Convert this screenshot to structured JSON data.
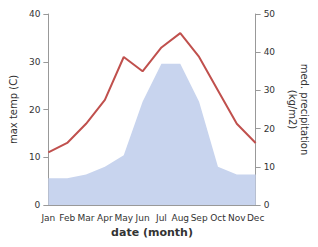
{
  "chart_data": {
    "type": "line",
    "xlabel": "date (month)",
    "ylabel": "max temp (C)",
    "y2label": "med. precipitation\n(kg/m2)",
    "categories": [
      "Jan",
      "Feb",
      "Mar",
      "Apr",
      "May",
      "Jun",
      "Jul",
      "Aug",
      "Sep",
      "Oct",
      "Nov",
      "Dec"
    ],
    "series": [
      {
        "type": "area",
        "axis": "y2",
        "color": "#c8d4ee",
        "values": [
          7,
          7,
          8,
          10,
          13,
          27,
          37,
          37,
          27,
          10,
          8,
          8
        ]
      },
      {
        "type": "line",
        "color": "#c0504d",
        "values": [
          11,
          13,
          17,
          22,
          31,
          28,
          33,
          36,
          31,
          24,
          17,
          13
        ]
      }
    ],
    "ylim": [
      0,
      40
    ],
    "yticks": [
      0,
      10,
      20,
      30,
      40
    ],
    "y2lim": [
      0,
      50
    ],
    "y2ticks": [
      0,
      10,
      20,
      30,
      40,
      50
    ],
    "grid": false
  }
}
